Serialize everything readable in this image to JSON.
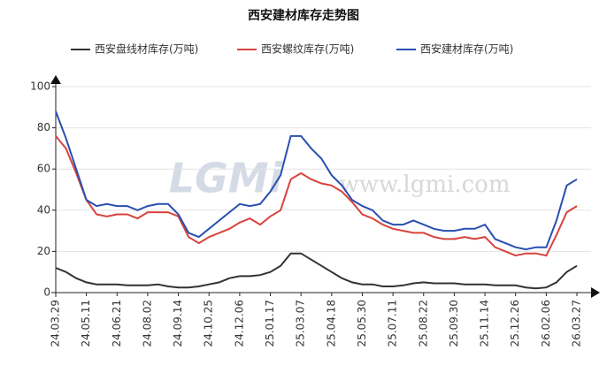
{
  "chart_data": {
    "type": "line",
    "title": "西安建材库存走势图",
    "watermark": {
      "logo": "LGMi",
      "site": "www.lgmi.com"
    },
    "categories": [
      "24.03.29",
      null,
      null,
      "24.05.11",
      null,
      null,
      "24.06.21",
      null,
      null,
      "24.08.02",
      null,
      null,
      "24.09.14",
      null,
      null,
      "24.10.25",
      null,
      null,
      "24.12.06",
      null,
      null,
      "25.01.17",
      null,
      null,
      "25.03.07",
      null,
      null,
      "25.04.18",
      null,
      null,
      "25.05.30",
      null,
      null,
      "25.07.11",
      null,
      null,
      "25.08.22",
      null,
      null,
      "25.09.30",
      null,
      null,
      "25.11.14",
      null,
      null,
      "25.12.26",
      null,
      null,
      "26.02.06",
      null,
      null,
      "26.03.27"
    ],
    "series": [
      {
        "name": "西安盘线材库存(万吨)",
        "color": "#333333",
        "values": [
          12,
          10,
          7,
          5,
          4,
          4,
          4,
          3.5,
          3.5,
          3.5,
          4,
          3,
          2.5,
          2.5,
          3,
          4,
          5,
          7,
          8,
          8,
          8.5,
          10,
          13,
          19,
          19,
          16,
          13,
          10,
          7,
          5,
          4,
          4,
          3,
          3,
          3.5,
          4.5,
          5,
          4.5,
          4.5,
          4.5,
          4,
          4,
          4,
          3.5,
          3.5,
          3.5,
          2.5,
          2,
          2.5,
          5,
          10,
          13
        ]
      },
      {
        "name": "西安螺纹库存(万吨)",
        "color": "#d9423d",
        "values": [
          76,
          70,
          58,
          45,
          38,
          37,
          38,
          38,
          36,
          39,
          39,
          39,
          37,
          27,
          24,
          27,
          29,
          31,
          34,
          36,
          33,
          37,
          40,
          55,
          58,
          55,
          53,
          52,
          49,
          44,
          38,
          36,
          33,
          31,
          30,
          29,
          29,
          27,
          26,
          26,
          27,
          26,
          27,
          22,
          20,
          18,
          19,
          19,
          18,
          28,
          39,
          42
        ]
      },
      {
        "name": "西安建材库存(万吨)",
        "color": "#2a4fb0",
        "values": [
          88,
          75,
          60,
          45,
          42,
          43,
          42,
          42,
          40,
          42,
          43,
          43,
          38,
          29,
          27,
          31,
          35,
          39,
          43,
          42,
          43,
          49,
          57,
          76,
          76,
          70,
          65,
          57,
          52,
          45,
          42,
          40,
          35,
          33,
          33,
          35,
          33,
          31,
          30,
          30,
          31,
          31,
          33,
          26,
          24,
          22,
          21,
          22,
          22,
          35,
          52,
          55
        ]
      }
    ],
    "ylim": [
      0,
      100
    ],
    "yticks": [
      0,
      20,
      40,
      60,
      80,
      100
    ],
    "grid": true
  }
}
